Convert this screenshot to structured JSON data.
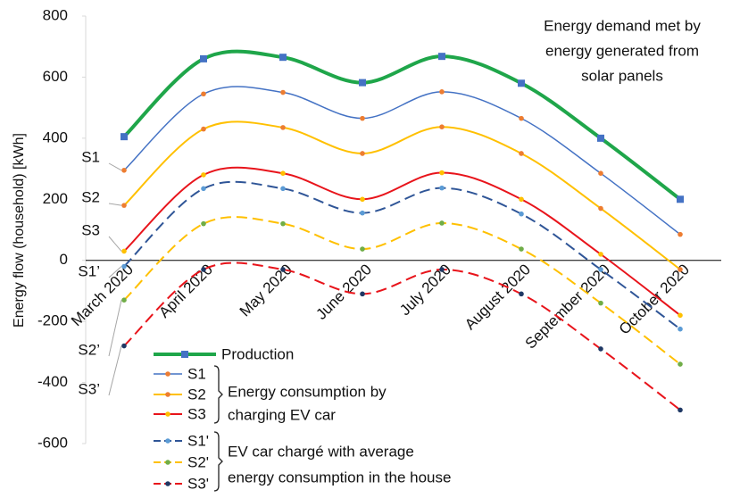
{
  "chart_data": {
    "type": "line",
    "smooth": true,
    "y_label": "Energy flow (household) [kWh]",
    "annotation": [
      "Energy demand met by",
      "energy generated from",
      "solar panels"
    ],
    "categories": [
      "March 2020",
      "April 2020",
      "May 2020",
      "June 2020",
      "July 2020",
      "August 2020",
      "September 2020",
      "October 2020"
    ],
    "ylim": [
      -600,
      800
    ],
    "yticks": [
      -600,
      -400,
      -200,
      0,
      200,
      400,
      600,
      800
    ],
    "grid": false,
    "series": [
      {
        "name": "Production",
        "color": "#1fa64a",
        "marker_color": "#4472c4",
        "dashed": false,
        "width": 4,
        "values": [
          405,
          660,
          665,
          582,
          668,
          580,
          400,
          200
        ]
      },
      {
        "name": "S1",
        "side_label": "S1",
        "color": "#4472c4",
        "marker_color": "#ed7d31",
        "dashed": false,
        "width": 1.5,
        "values": [
          295,
          545,
          550,
          465,
          552,
          465,
          285,
          85
        ]
      },
      {
        "name": "S2",
        "side_label": "S2",
        "color": "#ffc000",
        "marker_color": "#ed7d31",
        "dashed": false,
        "width": 2,
        "values": [
          180,
          430,
          435,
          350,
          437,
          350,
          170,
          -30
        ]
      },
      {
        "name": "S3",
        "side_label": "S3",
        "color": "#e8141b",
        "marker_color": "#ffc000",
        "dashed": false,
        "width": 2,
        "values": [
          30,
          280,
          285,
          200,
          287,
          200,
          20,
          -180
        ]
      },
      {
        "name": "S1'",
        "side_label": "S1’",
        "color": "#2f5597",
        "marker_color": "#5b9bd5",
        "dashed": true,
        "width": 2,
        "values": [
          -20,
          235,
          235,
          155,
          237,
          152,
          -30,
          -225
        ]
      },
      {
        "name": "S2'",
        "side_label": "S2’",
        "color": "#ffc000",
        "marker_color": "#70ad47",
        "dashed": true,
        "width": 2,
        "values": [
          -130,
          120,
          120,
          37,
          122,
          37,
          -140,
          -340
        ]
      },
      {
        "name": "S3'",
        "side_label": "S3’",
        "color": "#e8141b",
        "marker_color": "#1f3864",
        "dashed": true,
        "width": 2,
        "values": [
          -280,
          -30,
          -30,
          -110,
          -30,
          -110,
          -290,
          -490
        ]
      }
    ],
    "legend_groups": [
      [
        "Energy consumption by",
        "charging EV car"
      ],
      [
        "EV car chargé with average",
        "energy consumption in the house"
      ]
    ]
  }
}
